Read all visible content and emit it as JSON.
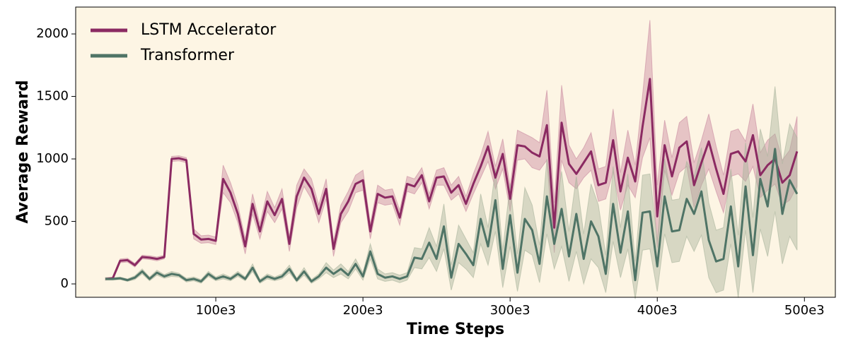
{
  "chart_data": {
    "type": "line",
    "xlabel": "Time Steps",
    "ylabel": "Average Reward",
    "legend": "upper left",
    "background": "#fdf5e4",
    "xlim": [
      4800,
      521000
    ],
    "ylim": [
      -107,
      2215
    ],
    "xticks": [
      {
        "value": 100000,
        "label": "100e3"
      },
      {
        "value": 200000,
        "label": "200e3"
      },
      {
        "value": 300000,
        "label": "300e3"
      },
      {
        "value": 400000,
        "label": "400e3"
      },
      {
        "value": 500000,
        "label": "500e3"
      }
    ],
    "yticks": [
      0,
      500,
      1000,
      1500,
      2000
    ],
    "x": [
      25000,
      30000,
      35000,
      40000,
      45000,
      50000,
      55000,
      60000,
      65000,
      70000,
      75000,
      80000,
      85000,
      90000,
      95000,
      100000,
      105000,
      110000,
      115000,
      120000,
      125000,
      130000,
      135000,
      140000,
      145000,
      150000,
      155000,
      160000,
      165000,
      170000,
      175000,
      180000,
      185000,
      190000,
      195000,
      200000,
      205000,
      210000,
      215000,
      220000,
      225000,
      230000,
      235000,
      240000,
      245000,
      250000,
      255000,
      260000,
      265000,
      270000,
      275000,
      280000,
      285000,
      290000,
      295000,
      300000,
      305000,
      310000,
      315000,
      320000,
      325000,
      330000,
      335000,
      340000,
      345000,
      350000,
      355000,
      360000,
      365000,
      370000,
      375000,
      380000,
      385000,
      390000,
      395000,
      400000,
      405000,
      410000,
      415000,
      420000,
      425000,
      430000,
      435000,
      440000,
      445000,
      450000,
      455000,
      460000,
      465000,
      470000,
      475000,
      480000,
      485000,
      490000,
      495000
    ],
    "series": [
      {
        "name": "LSTM Accelerator",
        "color": "#8b2a62",
        "band_color": "#c98aa0",
        "values": [
          40,
          45,
          185,
          190,
          150,
          215,
          210,
          200,
          215,
          1000,
          1005,
          990,
          400,
          355,
          360,
          345,
          840,
          730,
          560,
          300,
          640,
          420,
          660,
          550,
          680,
          320,
          700,
          850,
          760,
          560,
          760,
          280,
          560,
          660,
          800,
          830,
          420,
          720,
          690,
          700,
          530,
          800,
          780,
          870,
          660,
          850,
          860,
          730,
          790,
          640,
          800,
          940,
          1100,
          850,
          1040,
          680,
          1110,
          1100,
          1050,
          1020,
          1270,
          450,
          1290,
          960,
          880,
          970,
          1060,
          790,
          810,
          1150,
          740,
          1010,
          820,
          1260,
          1640,
          540,
          1110,
          860,
          1090,
          1140,
          790,
          970,
          1140,
          920,
          720,
          1040,
          1060,
          980,
          1190,
          870,
          950,
          1000,
          810,
          870,
          1060
        ],
        "errors": [
          10,
          10,
          15,
          15,
          15,
          15,
          15,
          15,
          15,
          20,
          20,
          20,
          40,
          30,
          30,
          30,
          110,
          80,
          70,
          60,
          80,
          60,
          80,
          60,
          80,
          60,
          90,
          70,
          80,
          70,
          80,
          60,
          70,
          80,
          70,
          80,
          60,
          70,
          60,
          60,
          60,
          60,
          60,
          60,
          60,
          60,
          70,
          60,
          70,
          60,
          80,
          90,
          120,
          90,
          120,
          100,
          120,
          100,
          120,
          110,
          280,
          200,
          300,
          150,
          120,
          120,
          150,
          130,
          130,
          250,
          150,
          220,
          130,
          250,
          470,
          250,
          200,
          150,
          200,
          200,
          180,
          180,
          220,
          180,
          150,
          180,
          180,
          160,
          250,
          180,
          200,
          200,
          180,
          200,
          280
        ]
      },
      {
        "name": "Transformer",
        "color": "#4f7466",
        "band_color": "#a9b49c",
        "values": [
          40,
          40,
          45,
          30,
          50,
          100,
          40,
          90,
          60,
          80,
          70,
          30,
          40,
          20,
          80,
          40,
          60,
          40,
          80,
          40,
          130,
          20,
          60,
          40,
          60,
          120,
          30,
          100,
          20,
          60,
          130,
          80,
          120,
          70,
          160,
          60,
          260,
          80,
          50,
          60,
          40,
          60,
          210,
          200,
          330,
          200,
          460,
          50,
          320,
          240,
          150,
          520,
          300,
          670,
          120,
          550,
          90,
          520,
          430,
          160,
          700,
          320,
          600,
          220,
          560,
          200,
          500,
          380,
          80,
          640,
          250,
          580,
          30,
          570,
          580,
          140,
          700,
          420,
          430,
          680,
          560,
          740,
          350,
          180,
          200,
          620,
          140,
          780,
          230,
          840,
          620,
          1080,
          560,
          830,
          720
        ],
        "errors": [
          10,
          10,
          10,
          10,
          15,
          20,
          15,
          20,
          15,
          20,
          15,
          15,
          15,
          15,
          20,
          15,
          20,
          15,
          20,
          15,
          30,
          15,
          20,
          15,
          20,
          30,
          15,
          30,
          15,
          20,
          40,
          30,
          40,
          30,
          40,
          30,
          60,
          40,
          30,
          30,
          30,
          30,
          80,
          80,
          120,
          100,
          180,
          100,
          150,
          120,
          100,
          200,
          150,
          250,
          150,
          250,
          150,
          250,
          200,
          150,
          300,
          200,
          300,
          200,
          300,
          200,
          300,
          250,
          150,
          300,
          200,
          300,
          150,
          300,
          300,
          200,
          300,
          250,
          250,
          300,
          300,
          350,
          300,
          250,
          250,
          300,
          250,
          350,
          300,
          400,
          400,
          500,
          400,
          450,
          450
        ]
      }
    ]
  }
}
